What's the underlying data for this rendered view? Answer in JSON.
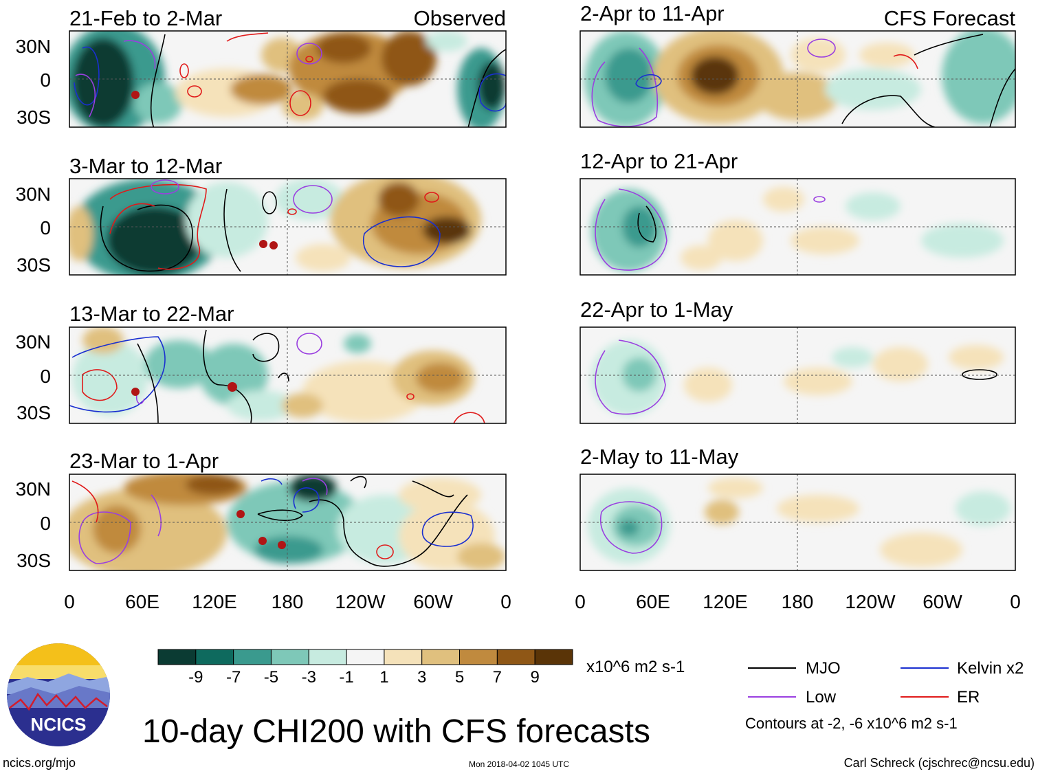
{
  "header": {
    "observed_label": "Observed",
    "forecast_label": "CFS Forecast"
  },
  "panels_left": [
    {
      "title": "21-Feb to 2-Mar"
    },
    {
      "title": "3-Mar to 12-Mar"
    },
    {
      "title": "13-Mar to 22-Mar"
    },
    {
      "title": "23-Mar to 1-Apr"
    }
  ],
  "panels_right": [
    {
      "title": "2-Apr to 11-Apr"
    },
    {
      "title": "12-Apr to 21-Apr"
    },
    {
      "title": "22-Apr to 1-May"
    },
    {
      "title": "2-May to 11-May"
    }
  ],
  "lat_labels": [
    "30N",
    "0",
    "30S"
  ],
  "lon_labels": [
    "0",
    "60E",
    "120E",
    "180",
    "120W",
    "60W",
    "0"
  ],
  "colorbar": {
    "colors": [
      "#0b3b33",
      "#0e6a5e",
      "#3a9a8e",
      "#7ec8b8",
      "#c7ebe0",
      "#f5f5f5",
      "#f5e2ba",
      "#e0c07e",
      "#c08a3e",
      "#8f5716",
      "#5a3407"
    ],
    "tick_labels": [
      "-9",
      "-7",
      "-5",
      "-3",
      "-1",
      "1",
      "3",
      "5",
      "7",
      "9"
    ],
    "units": "x10^6 m2 s-1"
  },
  "legend": {
    "items": [
      {
        "label": "MJO",
        "color": "#000000"
      },
      {
        "label": "Kelvin x2",
        "color": "#1a2fd0"
      },
      {
        "label": "Low",
        "color": "#9a3fe0"
      },
      {
        "label": "ER",
        "color": "#e01a1a"
      }
    ],
    "contours_note": "Contours at -2, -6 x10^6 m2 s-1"
  },
  "logo": {
    "text": "NCICS"
  },
  "main_title": "10-day CHI200 with CFS forecasts",
  "footer": {
    "url": "ncics.org/mjo",
    "timestamp": "Mon 2018-04-02 1045 UTC",
    "credit": "Carl Schreck (cjschrec@ncsu.edu)"
  }
}
